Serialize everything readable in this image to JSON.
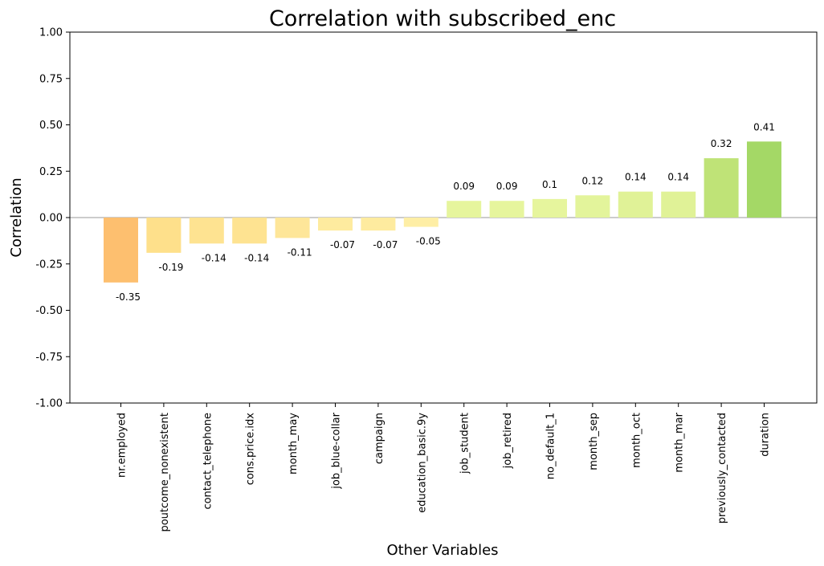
{
  "chart_data": {
    "type": "bar",
    "title": "Correlation with subscribed_enc",
    "xlabel": "Other Variables",
    "ylabel": "Correlation",
    "ylim": [
      -1.0,
      1.0
    ],
    "yticks": [
      "-1.00",
      "-0.75",
      "-0.50",
      "-0.25",
      "0.00",
      "0.25",
      "0.50",
      "0.75",
      "1.00"
    ],
    "ytick_values": [
      -1.0,
      -0.75,
      -0.5,
      -0.25,
      0.0,
      0.25,
      0.5,
      0.75,
      1.0
    ],
    "grid": false,
    "zero_line": true,
    "categories": [
      "nr.employed",
      "poutcome_nonexistent",
      "contact_telephone",
      "cons.price.idx",
      "month_may",
      "job_blue-collar",
      "campaign",
      "education_basic.9y",
      "job_student",
      "job_retired",
      "no_default_1",
      "month_sep",
      "month_oct",
      "month_mar",
      "previously_contacted",
      "duration"
    ],
    "values": [
      -0.35,
      -0.19,
      -0.14,
      -0.14,
      -0.11,
      -0.07,
      -0.07,
      -0.05,
      0.09,
      0.09,
      0.1,
      0.12,
      0.14,
      0.14,
      0.32,
      0.41
    ],
    "data_labels": [
      "-0.35",
      "-0.19",
      "-0.14",
      "-0.14",
      "-0.11",
      "-0.07",
      "-0.07",
      "-0.05",
      "0.09",
      "0.09",
      "0.1",
      "0.12",
      "0.14",
      "0.14",
      "0.32",
      "0.41"
    ],
    "colors": [
      "#fdbf6f",
      "#fee08b",
      "#fee391",
      "#fee391",
      "#fee699",
      "#feeb9f",
      "#feeb9f",
      "#feeea5",
      "#e6f59d",
      "#e6f59d",
      "#e6f59d",
      "#e3f49b",
      "#e0f297",
      "#e0f297",
      "#bfe377",
      "#a4d866"
    ],
    "zero_line_color": "#cccccc"
  }
}
